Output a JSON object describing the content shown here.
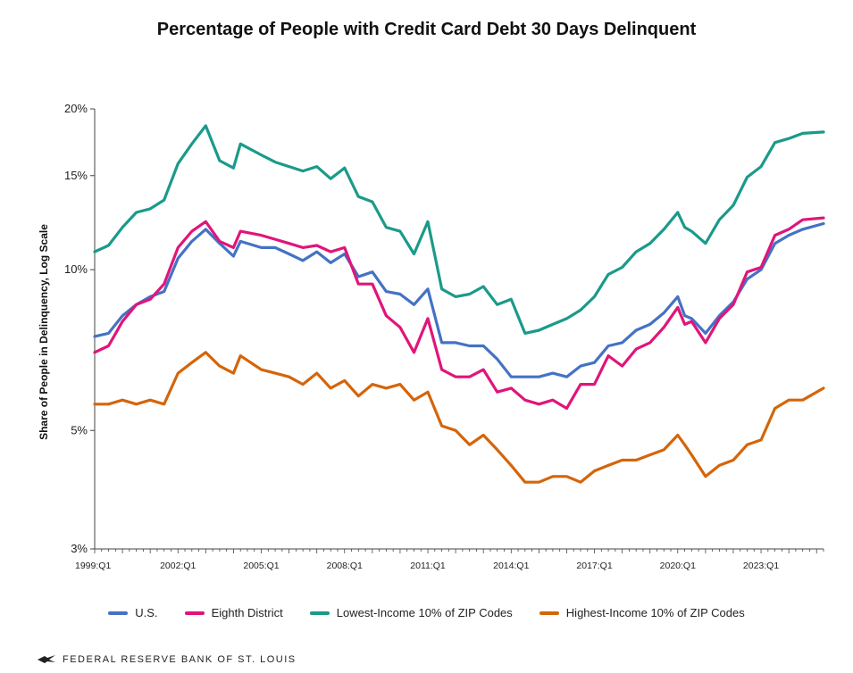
{
  "colors": {
    "us": "#4472c4",
    "eighth": "#e0157a",
    "lowest": "#1a9a8a",
    "highest": "#d4650a",
    "axis": "#444444"
  },
  "chart_data": {
    "type": "line",
    "title": "Percentage of People with Credit Card Debt 30 Days Delinquent",
    "ylabel": "Share of People in Delinquency, Log Scale",
    "xlabel": "",
    "y_scale": "log",
    "ylim": [
      3,
      20
    ],
    "y_ticks": [
      3,
      5,
      10,
      15,
      20
    ],
    "y_tick_labels": [
      "3%",
      "5%",
      "10%",
      "15%",
      "20%"
    ],
    "x_ticks": [
      "1999:Q1",
      "2002:Q1",
      "2005:Q1",
      "2008:Q1",
      "2011:Q1",
      "2014:Q1",
      "2017:Q1",
      "2020:Q1",
      "2023:Q1"
    ],
    "x_range": [
      "1999:Q1",
      "2025:Q2"
    ],
    "grid": false,
    "legend_position": "bottom",
    "series": [
      {
        "name": "U.S.",
        "color_key": "us",
        "points": [
          [
            "1999:Q1",
            7.5
          ],
          [
            "1999:Q3",
            7.6
          ],
          [
            "2000:Q1",
            8.2
          ],
          [
            "2000:Q3",
            8.6
          ],
          [
            "2001:Q1",
            8.9
          ],
          [
            "2001:Q3",
            9.1
          ],
          [
            "2002:Q1",
            10.5
          ],
          [
            "2002:Q3",
            11.3
          ],
          [
            "2003:Q1",
            11.9
          ],
          [
            "2003:Q3",
            11.2
          ],
          [
            "2004:Q1",
            10.6
          ],
          [
            "2004:Q2",
            11.3
          ],
          [
            "2005:Q1",
            11.0
          ],
          [
            "2005:Q3",
            11.0
          ],
          [
            "2006:Q1",
            10.7
          ],
          [
            "2006:Q3",
            10.4
          ],
          [
            "2007:Q1",
            10.8
          ],
          [
            "2007:Q3",
            10.3
          ],
          [
            "2008:Q1",
            10.7
          ],
          [
            "2008:Q3",
            9.7
          ],
          [
            "2009:Q1",
            9.9
          ],
          [
            "2009:Q3",
            9.1
          ],
          [
            "2010:Q1",
            9.0
          ],
          [
            "2010:Q3",
            8.6
          ],
          [
            "2011:Q1",
            9.2
          ],
          [
            "2011:Q3",
            7.3
          ],
          [
            "2012:Q1",
            7.3
          ],
          [
            "2012:Q3",
            7.2
          ],
          [
            "2013:Q1",
            7.2
          ],
          [
            "2013:Q3",
            6.8
          ],
          [
            "2014:Q1",
            6.3
          ],
          [
            "2014:Q3",
            6.3
          ],
          [
            "2015:Q1",
            6.3
          ],
          [
            "2015:Q3",
            6.4
          ],
          [
            "2016:Q1",
            6.3
          ],
          [
            "2016:Q3",
            6.6
          ],
          [
            "2017:Q1",
            6.7
          ],
          [
            "2017:Q3",
            7.2
          ],
          [
            "2018:Q1",
            7.3
          ],
          [
            "2018:Q3",
            7.7
          ],
          [
            "2019:Q1",
            7.9
          ],
          [
            "2019:Q3",
            8.3
          ],
          [
            "2020:Q1",
            8.9
          ],
          [
            "2020:Q2",
            8.2
          ],
          [
            "2020:Q3",
            8.1
          ],
          [
            "2021:Q1",
            7.6
          ],
          [
            "2021:Q3",
            8.2
          ],
          [
            "2022:Q1",
            8.7
          ],
          [
            "2022:Q3",
            9.6
          ],
          [
            "2023:Q1",
            10.0
          ],
          [
            "2023:Q3",
            11.2
          ],
          [
            "2024:Q1",
            11.6
          ],
          [
            "2024:Q3",
            11.9
          ],
          [
            "2025:Q2",
            12.2
          ]
        ]
      },
      {
        "name": "Eighth District",
        "color_key": "eighth",
        "points": [
          [
            "1999:Q1",
            7.0
          ],
          [
            "1999:Q3",
            7.2
          ],
          [
            "2000:Q1",
            8.0
          ],
          [
            "2000:Q3",
            8.6
          ],
          [
            "2001:Q1",
            8.8
          ],
          [
            "2001:Q3",
            9.4
          ],
          [
            "2002:Q1",
            11.0
          ],
          [
            "2002:Q3",
            11.8
          ],
          [
            "2003:Q1",
            12.3
          ],
          [
            "2003:Q3",
            11.3
          ],
          [
            "2004:Q1",
            11.0
          ],
          [
            "2004:Q2",
            11.8
          ],
          [
            "2005:Q1",
            11.6
          ],
          [
            "2005:Q3",
            11.4
          ],
          [
            "2006:Q1",
            11.2
          ],
          [
            "2006:Q3",
            11.0
          ],
          [
            "2007:Q1",
            11.1
          ],
          [
            "2007:Q3",
            10.8
          ],
          [
            "2008:Q1",
            11.0
          ],
          [
            "2008:Q3",
            9.4
          ],
          [
            "2009:Q1",
            9.4
          ],
          [
            "2009:Q3",
            8.2
          ],
          [
            "2010:Q1",
            7.8
          ],
          [
            "2010:Q3",
            7.0
          ],
          [
            "2011:Q1",
            8.1
          ],
          [
            "2011:Q3",
            6.5
          ],
          [
            "2012:Q1",
            6.3
          ],
          [
            "2012:Q3",
            6.3
          ],
          [
            "2013:Q1",
            6.5
          ],
          [
            "2013:Q3",
            5.9
          ],
          [
            "2014:Q1",
            6.0
          ],
          [
            "2014:Q3",
            5.7
          ],
          [
            "2015:Q1",
            5.6
          ],
          [
            "2015:Q3",
            5.7
          ],
          [
            "2016:Q1",
            5.5
          ],
          [
            "2016:Q3",
            6.1
          ],
          [
            "2017:Q1",
            6.1
          ],
          [
            "2017:Q3",
            6.9
          ],
          [
            "2018:Q1",
            6.6
          ],
          [
            "2018:Q3",
            7.1
          ],
          [
            "2019:Q1",
            7.3
          ],
          [
            "2019:Q3",
            7.8
          ],
          [
            "2020:Q1",
            8.5
          ],
          [
            "2020:Q2",
            7.9
          ],
          [
            "2020:Q3",
            8.0
          ],
          [
            "2021:Q1",
            7.3
          ],
          [
            "2021:Q3",
            8.1
          ],
          [
            "2022:Q1",
            8.6
          ],
          [
            "2022:Q3",
            9.9
          ],
          [
            "2023:Q1",
            10.1
          ],
          [
            "2023:Q3",
            11.6
          ],
          [
            "2024:Q1",
            11.9
          ],
          [
            "2024:Q3",
            12.4
          ],
          [
            "2025:Q2",
            12.5
          ]
        ]
      },
      {
        "name": "Lowest-Income 10% of ZIP Codes",
        "color_key": "lowest",
        "points": [
          [
            "1999:Q1",
            10.8
          ],
          [
            "1999:Q3",
            11.1
          ],
          [
            "2000:Q1",
            12.0
          ],
          [
            "2000:Q3",
            12.8
          ],
          [
            "2001:Q1",
            13.0
          ],
          [
            "2001:Q3",
            13.5
          ],
          [
            "2002:Q1",
            15.8
          ],
          [
            "2002:Q3",
            17.2
          ],
          [
            "2003:Q1",
            18.6
          ],
          [
            "2003:Q3",
            16.0
          ],
          [
            "2004:Q1",
            15.5
          ],
          [
            "2004:Q2",
            17.2
          ],
          [
            "2005:Q1",
            16.4
          ],
          [
            "2005:Q3",
            15.9
          ],
          [
            "2006:Q1",
            15.6
          ],
          [
            "2006:Q3",
            15.3
          ],
          [
            "2007:Q1",
            15.6
          ],
          [
            "2007:Q3",
            14.8
          ],
          [
            "2008:Q1",
            15.5
          ],
          [
            "2008:Q3",
            13.7
          ],
          [
            "2009:Q1",
            13.4
          ],
          [
            "2009:Q3",
            12.0
          ],
          [
            "2010:Q1",
            11.8
          ],
          [
            "2010:Q3",
            10.7
          ],
          [
            "2011:Q1",
            12.3
          ],
          [
            "2011:Q3",
            9.2
          ],
          [
            "2012:Q1",
            8.9
          ],
          [
            "2012:Q3",
            9.0
          ],
          [
            "2013:Q1",
            9.3
          ],
          [
            "2013:Q3",
            8.6
          ],
          [
            "2014:Q1",
            8.8
          ],
          [
            "2014:Q3",
            7.6
          ],
          [
            "2015:Q1",
            7.7
          ],
          [
            "2015:Q3",
            7.9
          ],
          [
            "2016:Q1",
            8.1
          ],
          [
            "2016:Q3",
            8.4
          ],
          [
            "2017:Q1",
            8.9
          ],
          [
            "2017:Q3",
            9.8
          ],
          [
            "2018:Q1",
            10.1
          ],
          [
            "2018:Q3",
            10.8
          ],
          [
            "2019:Q1",
            11.2
          ],
          [
            "2019:Q3",
            11.9
          ],
          [
            "2020:Q1",
            12.8
          ],
          [
            "2020:Q2",
            12.0
          ],
          [
            "2020:Q3",
            11.8
          ],
          [
            "2021:Q1",
            11.2
          ],
          [
            "2021:Q3",
            12.4
          ],
          [
            "2022:Q1",
            13.2
          ],
          [
            "2022:Q3",
            14.9
          ],
          [
            "2023:Q1",
            15.6
          ],
          [
            "2023:Q3",
            17.3
          ],
          [
            "2024:Q1",
            17.6
          ],
          [
            "2024:Q3",
            18.0
          ],
          [
            "2025:Q2",
            18.1
          ]
        ]
      },
      {
        "name": "Highest-Income 10% of ZIP Codes",
        "color_key": "highest",
        "points": [
          [
            "1999:Q1",
            5.6
          ],
          [
            "1999:Q3",
            5.6
          ],
          [
            "2000:Q1",
            5.7
          ],
          [
            "2000:Q3",
            5.6
          ],
          [
            "2001:Q1",
            5.7
          ],
          [
            "2001:Q3",
            5.6
          ],
          [
            "2002:Q1",
            6.4
          ],
          [
            "2002:Q3",
            6.7
          ],
          [
            "2003:Q1",
            7.0
          ],
          [
            "2003:Q3",
            6.6
          ],
          [
            "2004:Q1",
            6.4
          ],
          [
            "2004:Q2",
            6.9
          ],
          [
            "2005:Q1",
            6.5
          ],
          [
            "2005:Q3",
            6.4
          ],
          [
            "2006:Q1",
            6.3
          ],
          [
            "2006:Q3",
            6.1
          ],
          [
            "2007:Q1",
            6.4
          ],
          [
            "2007:Q3",
            6.0
          ],
          [
            "2008:Q1",
            6.2
          ],
          [
            "2008:Q3",
            5.8
          ],
          [
            "2009:Q1",
            6.1
          ],
          [
            "2009:Q3",
            6.0
          ],
          [
            "2010:Q1",
            6.1
          ],
          [
            "2010:Q3",
            5.7
          ],
          [
            "2011:Q1",
            5.9
          ],
          [
            "2011:Q3",
            5.1
          ],
          [
            "2012:Q1",
            5.0
          ],
          [
            "2012:Q3",
            4.7
          ],
          [
            "2013:Q1",
            4.9
          ],
          [
            "2013:Q3",
            4.6
          ],
          [
            "2014:Q1",
            4.3
          ],
          [
            "2014:Q3",
            4.0
          ],
          [
            "2015:Q1",
            4.0
          ],
          [
            "2015:Q3",
            4.1
          ],
          [
            "2016:Q1",
            4.1
          ],
          [
            "2016:Q3",
            4.0
          ],
          [
            "2017:Q1",
            4.2
          ],
          [
            "2017:Q3",
            4.3
          ],
          [
            "2018:Q1",
            4.4
          ],
          [
            "2018:Q3",
            4.4
          ],
          [
            "2019:Q1",
            4.5
          ],
          [
            "2019:Q3",
            4.6
          ],
          [
            "2020:Q1",
            4.9
          ],
          [
            "2020:Q2",
            4.7
          ],
          [
            "2020:Q3",
            4.5
          ],
          [
            "2021:Q1",
            4.1
          ],
          [
            "2021:Q3",
            4.3
          ],
          [
            "2022:Q1",
            4.4
          ],
          [
            "2022:Q3",
            4.7
          ],
          [
            "2023:Q1",
            4.8
          ],
          [
            "2023:Q3",
            5.5
          ],
          [
            "2024:Q1",
            5.7
          ],
          [
            "2024:Q3",
            5.7
          ],
          [
            "2025:Q2",
            6.0
          ]
        ]
      }
    ]
  },
  "footer": {
    "text": "FEDERAL RESERVE BANK OF ST. LOUIS"
  }
}
